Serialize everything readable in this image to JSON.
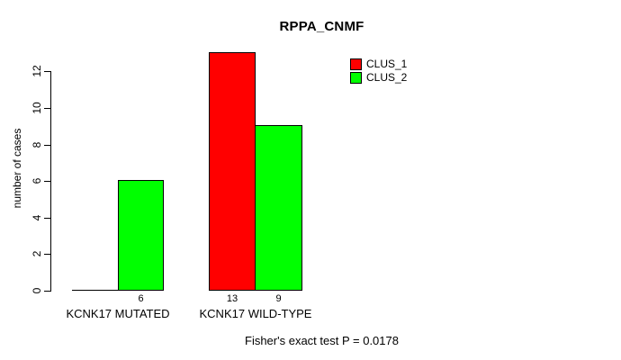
{
  "chart_data": {
    "type": "bar",
    "title": "RPPA_CNMF",
    "xlabel": "",
    "ylabel": "number of cases",
    "ylim": [
      0,
      13
    ],
    "yticks": [
      0,
      2,
      4,
      6,
      8,
      10,
      12
    ],
    "categories": [
      "KCNK17 MUTATED",
      "KCNK17 WILD-TYPE"
    ],
    "series": [
      {
        "name": "CLUS_1",
        "color": "#FF0000",
        "values": [
          0,
          13
        ]
      },
      {
        "name": "CLUS_2",
        "color": "#00FF00",
        "values": [
          6,
          9
        ]
      }
    ],
    "bar_value_labels_shown": [
      6,
      13,
      9
    ],
    "legend_position": "top-right",
    "grid": false,
    "annotation": "Fisher's exact test P = 0.0178"
  },
  "colors": {
    "background": "#FFFFFF",
    "axis": "#000000",
    "bar_border": "#000000"
  }
}
